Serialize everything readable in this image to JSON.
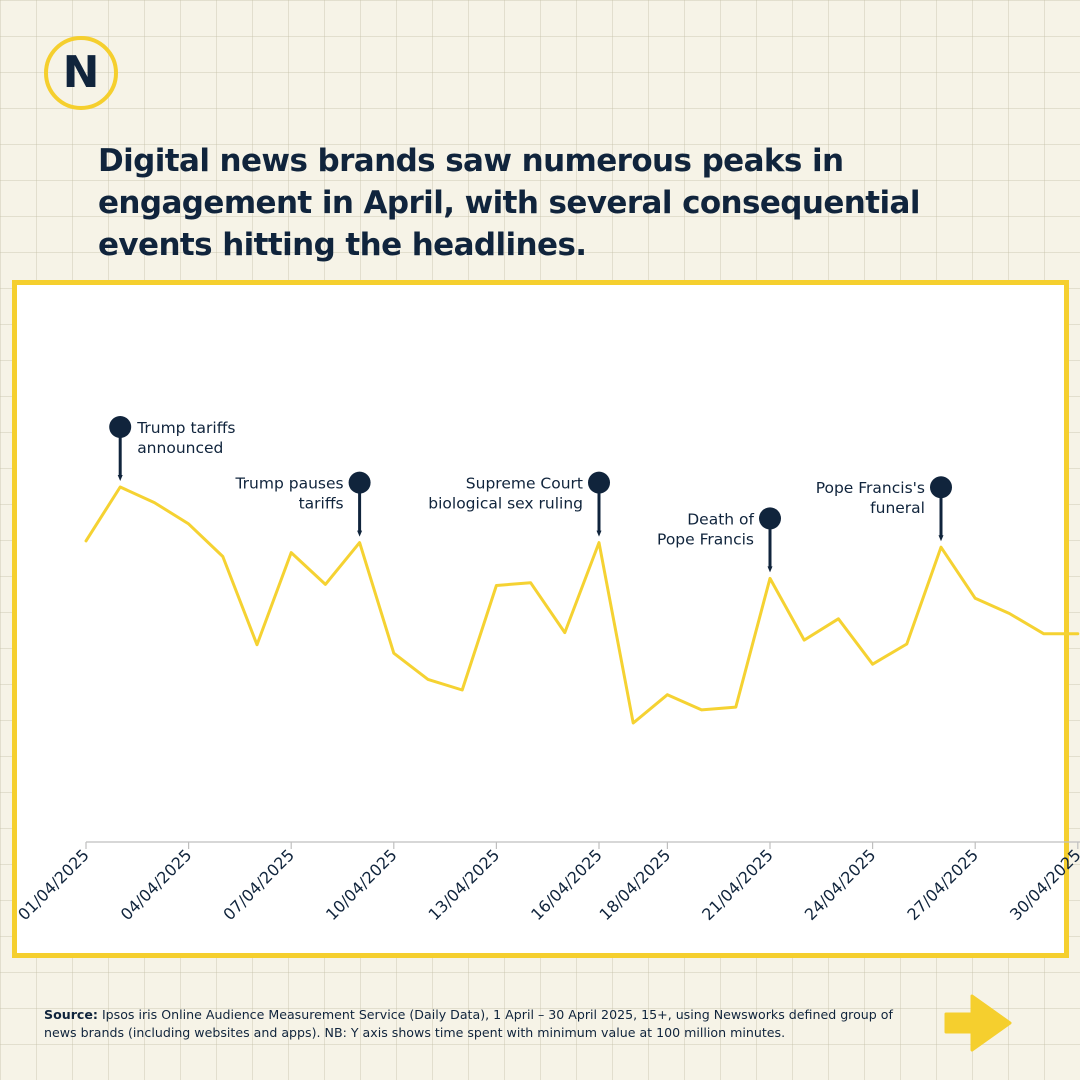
{
  "logo": {
    "letter": "N",
    "icon": "newsworks-n-logo"
  },
  "headline": "Digital news brands saw numerous peaks in engagement in April, with several consequential events hitting the headlines.",
  "chart_data": {
    "type": "line",
    "title": "",
    "xlabel": "",
    "ylabel": "",
    "y_axis_visible": false,
    "grid": false,
    "line_color": "#f5d232",
    "ylim": [
      0,
      100
    ],
    "x": [
      "01/04/2025",
      "02/04/2025",
      "03/04/2025",
      "04/04/2025",
      "05/04/2025",
      "06/04/2025",
      "07/04/2025",
      "08/04/2025",
      "09/04/2025",
      "10/04/2025",
      "11/04/2025",
      "12/04/2025",
      "13/04/2025",
      "14/04/2025",
      "15/04/2025",
      "16/04/2025",
      "17/04/2025",
      "18/04/2025",
      "19/04/2025",
      "20/04/2025",
      "21/04/2025",
      "22/04/2025",
      "23/04/2025",
      "24/04/2025",
      "25/04/2025",
      "26/04/2025",
      "27/04/2025",
      "28/04/2025",
      "29/04/2025",
      "30/04/2025"
    ],
    "values": [
      84.8,
      100.0,
      95.6,
      89.6,
      80.4,
      55.5,
      81.5,
      72.5,
      84.3,
      53.1,
      45.7,
      42.7,
      72.2,
      73.0,
      58.9,
      84.3,
      33.4,
      41.4,
      37.1,
      37.9,
      74.2,
      56.8,
      62.8,
      50.0,
      55.7,
      83.0,
      68.6,
      64.3,
      58.6,
      58.6
    ],
    "x_tick_labels": [
      "01/04/2025",
      "04/04/2025",
      "07/04/2025",
      "10/04/2025",
      "13/04/2025",
      "16/04/2025",
      "18/04/2025",
      "21/04/2025",
      "24/04/2025",
      "27/04/2025",
      "30/04/2025"
    ],
    "annotations": [
      {
        "index": 1,
        "lines": [
          "Trump tariffs",
          "announced"
        ],
        "side": "right"
      },
      {
        "index": 8,
        "lines": [
          "Trump pauses",
          "tariffs"
        ],
        "side": "left"
      },
      {
        "index": 15,
        "lines": [
          "Supreme Court",
          "biological sex ruling"
        ],
        "side": "left"
      },
      {
        "index": 20,
        "lines": [
          "Death of",
          "Pope Francis"
        ],
        "side": "left"
      },
      {
        "index": 25,
        "lines": [
          "Pope Francis's",
          "funeral"
        ],
        "side": "left"
      }
    ],
    "annotation_marker": "map-pin-icon"
  },
  "footnote": {
    "source_label": "Source:",
    "text": " Ipsos iris Online Audience Measurement Service (Daily Data), 1 April – 30 April 2025, 15+, using Newsworks defined group of news brands (including websites and apps). NB: Y axis shows time spent with minimum value at 100 million minutes."
  },
  "next_button": {
    "icon": "arrow-right-icon",
    "color": "#f5cf2e"
  }
}
